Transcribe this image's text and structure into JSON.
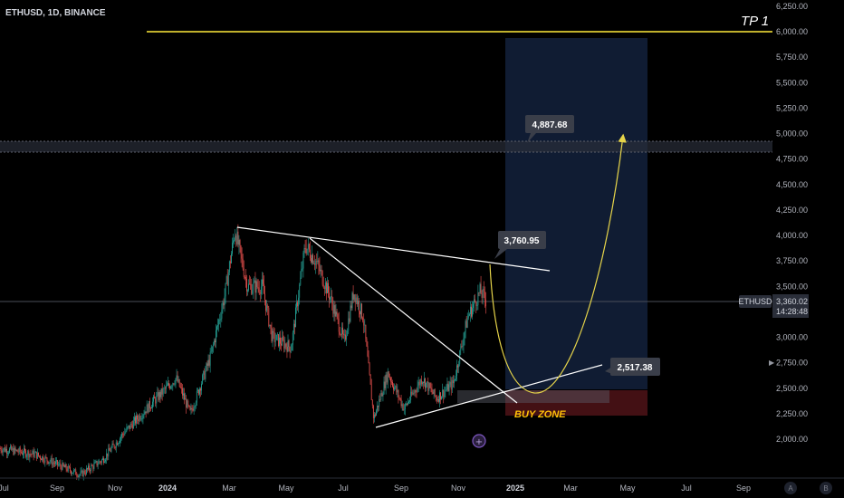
{
  "header": {
    "symbol": "ETHUSD, 1D, BINANCE"
  },
  "price_scale": {
    "ticks": [
      "6,250.00",
      "6,000.00",
      "5,750.00",
      "5,500.00",
      "5,250.00",
      "5,000.00",
      "4,750.00",
      "4,500.00",
      "4,250.00",
      "4,000.00",
      "3,750.00",
      "3,500.00",
      "3,250.00",
      "3,000.00",
      "2,750.00",
      "2,500.00",
      "2,250.00",
      "2,000.00"
    ],
    "ticker_label": "ETHUSD",
    "last_price": "3,360.02",
    "countdown": "14:28:48"
  },
  "time_scale": {
    "ticks": [
      "Jul",
      "Sep",
      "Nov",
      "2024",
      "Mar",
      "May",
      "Jul",
      "Sep",
      "Nov",
      "2025",
      "Mar",
      "May",
      "Jul",
      "Sep"
    ],
    "bold_ticks": [
      "2024",
      "2025"
    ],
    "scale_buttons": [
      "A",
      "B"
    ]
  },
  "annotations": {
    "tp_label": "TP 1",
    "target_price": "4,887.68",
    "resistance_price": "3,760.95",
    "support_price": "2,517.38",
    "buy_zone_label": "BUY ZONE"
  },
  "colors": {
    "background": "#000000",
    "candle_up": "#26a69a",
    "candle_down": "#ef5350",
    "tp_line": "#ffeb3b",
    "trendline": "#ffffff",
    "projection": "#e6d44a",
    "target_zone": "#162544",
    "buy_zone": "#4a1216",
    "price_label_bg": "#2a2e39"
  },
  "chart_data": {
    "type": "candlestick",
    "symbol": "ETHUSD",
    "timeframe": "1D",
    "exchange": "BINANCE",
    "price_axis": {
      "min": 1900,
      "max": 6300,
      "scale": "linear"
    },
    "time_axis": {
      "start": "2023-07",
      "end": "2025-10"
    },
    "last_price": 3360.02,
    "key_prices": [
      {
        "label": "TP 1",
        "price": 6000
      },
      {
        "label": "target",
        "price": 4887.68
      },
      {
        "label": "resistance",
        "price": 3760.95
      },
      {
        "label": "support",
        "price": 2517.38
      }
    ],
    "price_path": [
      {
        "date": "2023-07-01",
        "price": 1920
      },
      {
        "date": "2023-08-15",
        "price": 1850
      },
      {
        "date": "2023-10-01",
        "price": 1650
      },
      {
        "date": "2023-10-25",
        "price": 1800
      },
      {
        "date": "2023-11-15",
        "price": 2050
      },
      {
        "date": "2023-12-10",
        "price": 2300
      },
      {
        "date": "2024-01-10",
        "price": 2600
      },
      {
        "date": "2024-01-25",
        "price": 2250
      },
      {
        "date": "2024-02-15",
        "price": 2800
      },
      {
        "date": "2024-03-01",
        "price": 3400
      },
      {
        "date": "2024-03-12",
        "price": 4050
      },
      {
        "date": "2024-03-25",
        "price": 3500
      },
      {
        "date": "2024-04-10",
        "price": 3500
      },
      {
        "date": "2024-04-20",
        "price": 3000
      },
      {
        "date": "2024-05-10",
        "price": 2900
      },
      {
        "date": "2024-05-25",
        "price": 3900
      },
      {
        "date": "2024-06-05",
        "price": 3750
      },
      {
        "date": "2024-06-20",
        "price": 3400
      },
      {
        "date": "2024-07-05",
        "price": 2950
      },
      {
        "date": "2024-07-15",
        "price": 3450
      },
      {
        "date": "2024-07-25",
        "price": 3200
      },
      {
        "date": "2024-08-05",
        "price": 2200
      },
      {
        "date": "2024-08-20",
        "price": 2650
      },
      {
        "date": "2024-09-06",
        "price": 2300
      },
      {
        "date": "2024-09-25",
        "price": 2600
      },
      {
        "date": "2024-10-10",
        "price": 2400
      },
      {
        "date": "2024-10-28",
        "price": 2550
      },
      {
        "date": "2024-11-12",
        "price": 3200
      },
      {
        "date": "2024-11-25",
        "price": 3450
      },
      {
        "date": "2024-12-01",
        "price": 3360
      }
    ]
  }
}
